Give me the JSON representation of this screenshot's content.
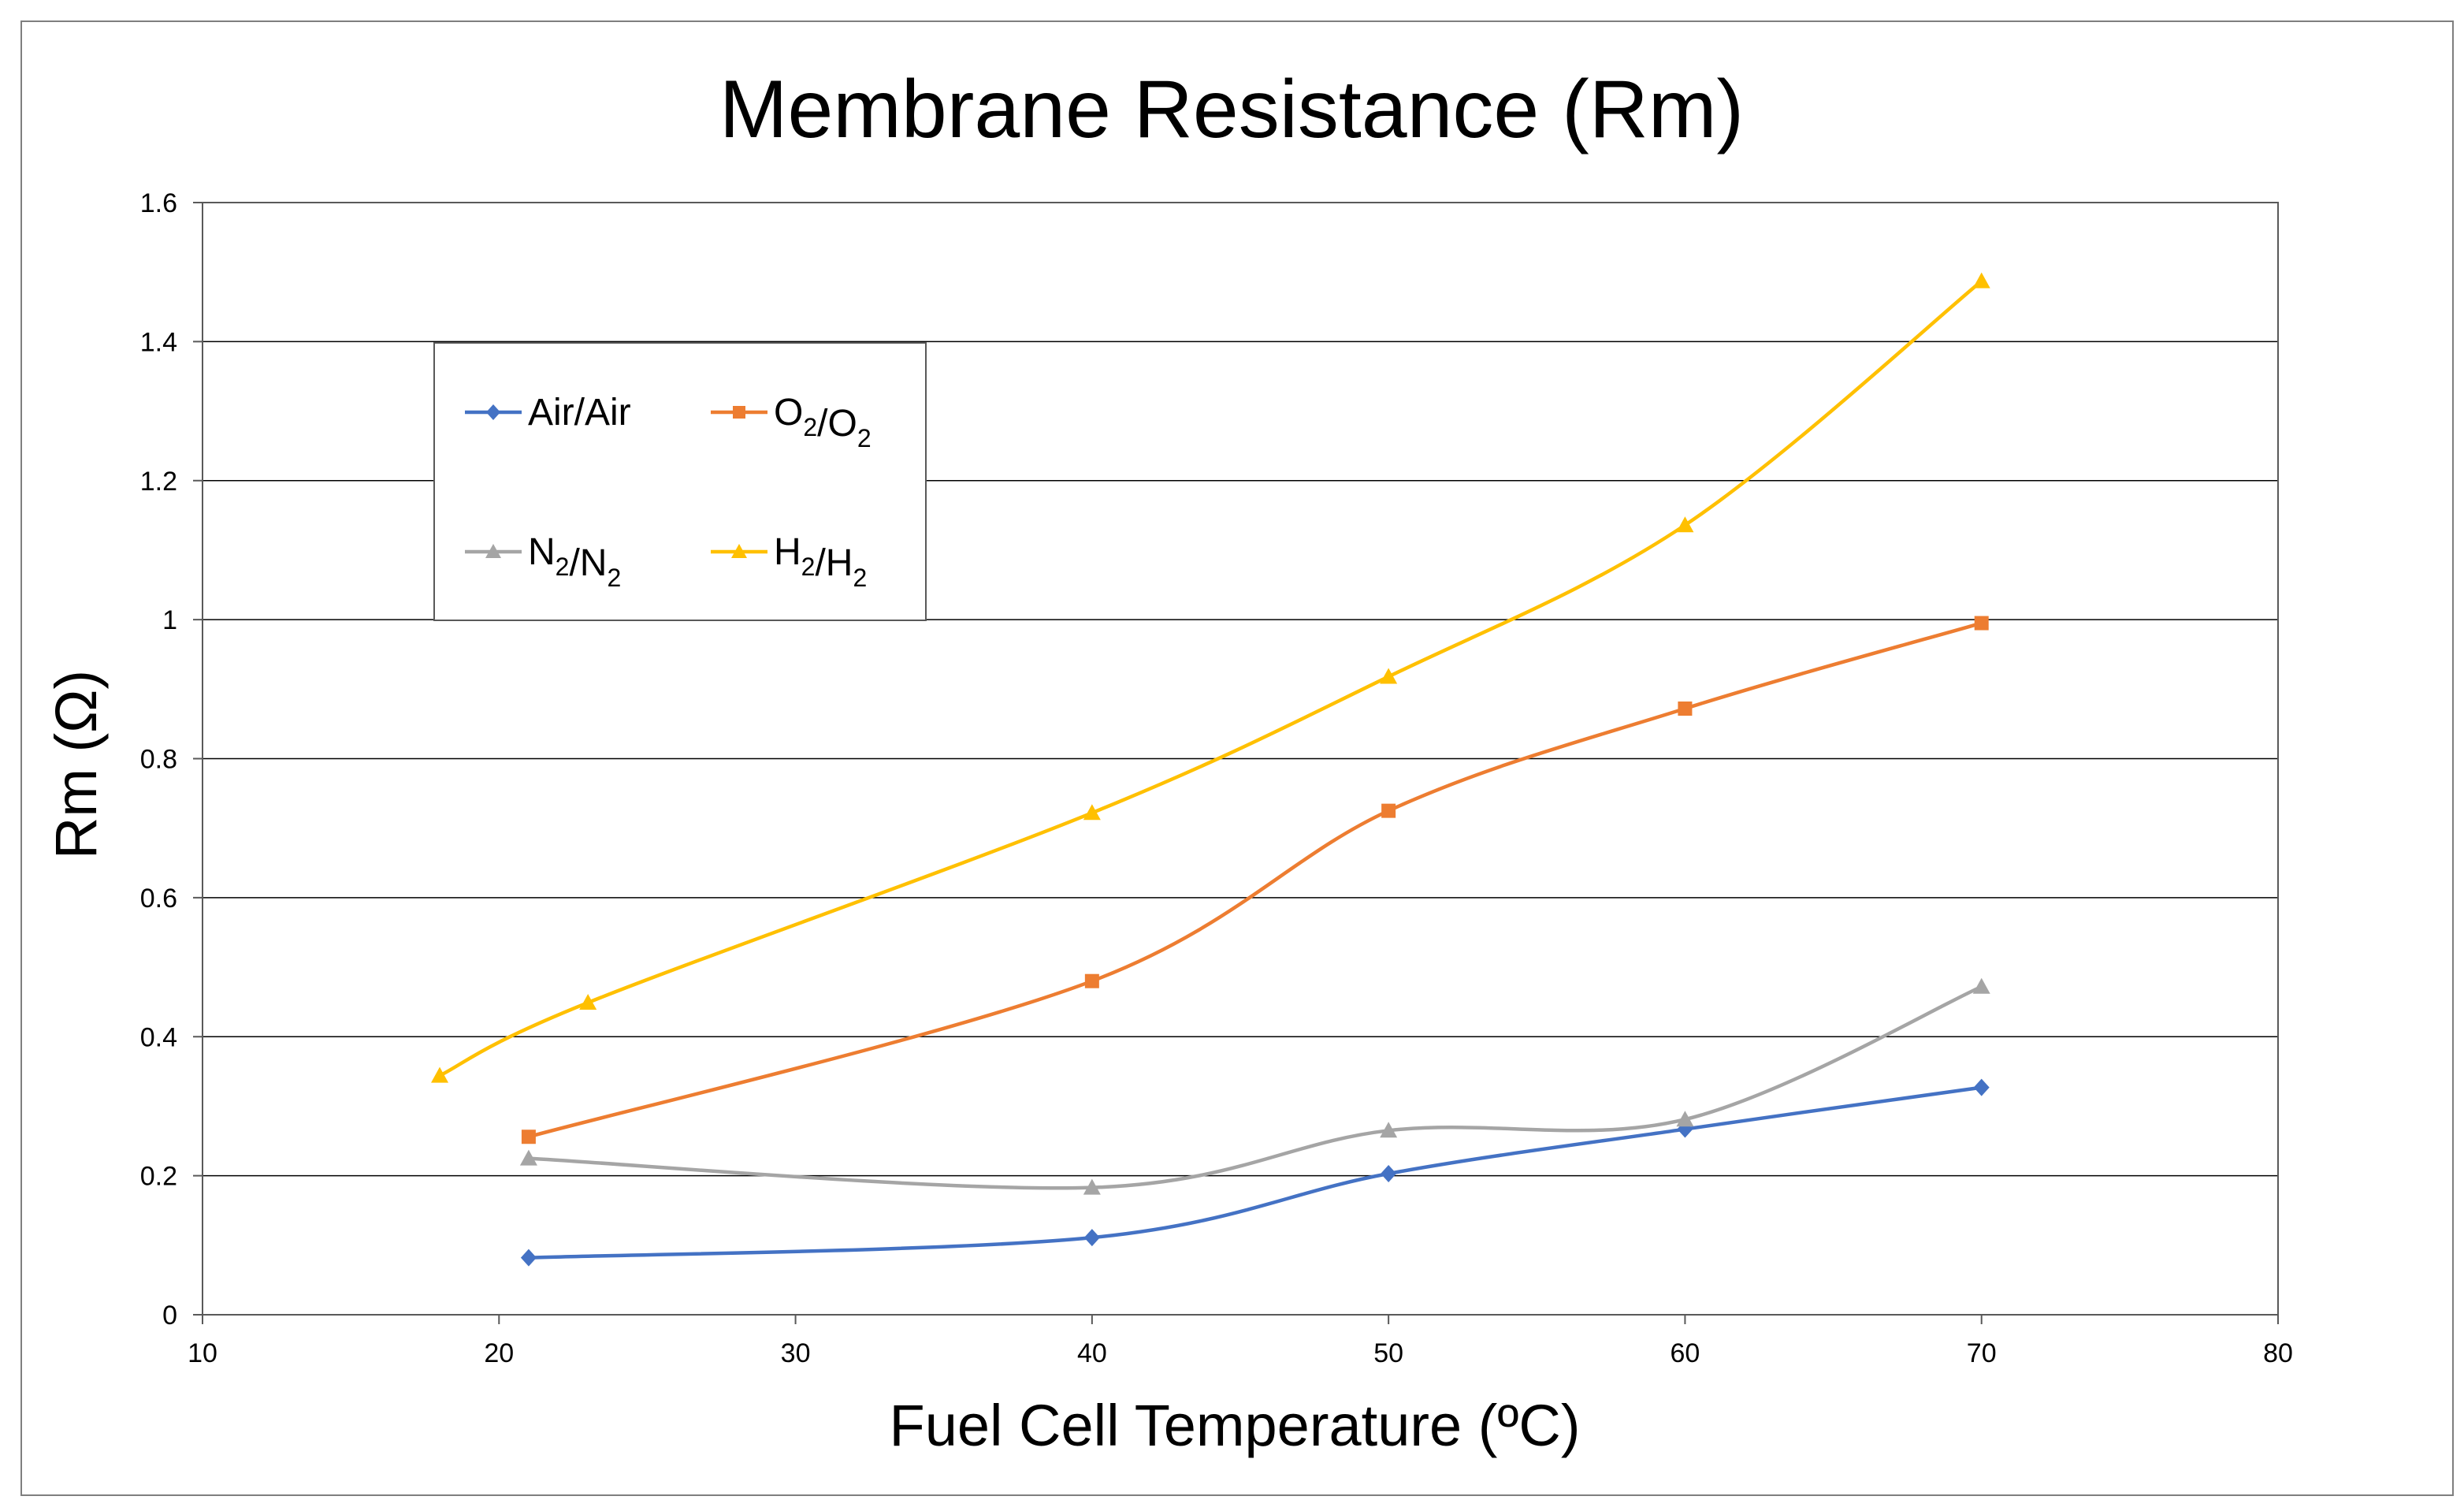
{
  "chart_data": {
    "type": "line",
    "title": "Membrane Resistance (Rm)",
    "xlabel": "Fuel Cell Temperature (ºC)",
    "ylabel": "Rm (Ω)",
    "xlim": [
      10,
      80
    ],
    "ylim": [
      0,
      1.6
    ],
    "xticks": [
      10,
      20,
      30,
      40,
      50,
      60,
      70,
      80
    ],
    "yticks": [
      0,
      0.2,
      0.4,
      0.6,
      0.8,
      1,
      1.2,
      1.4,
      1.6
    ],
    "ytick_labels": [
      "0",
      "0.2",
      "0.4",
      "0.6",
      "0.8",
      "1",
      "1.2",
      "1.4",
      "1.6"
    ],
    "grid": "horizontal",
    "legend_position": "top-left (inside plot)",
    "smooth": true,
    "series": [
      {
        "name": "Air/Air",
        "name_base": [
          "Air/Air"
        ],
        "name_sub": [],
        "color": "#4472C4",
        "marker": "diamond",
        "x": [
          21,
          40,
          50,
          60,
          70
        ],
        "y": [
          0.082,
          0.111,
          0.203,
          0.267,
          0.327
        ]
      },
      {
        "name": "O2/O2",
        "name_base": [
          "O",
          "/O"
        ],
        "name_sub": [
          "2",
          "2"
        ],
        "color": "#ED7D31",
        "marker": "square",
        "x": [
          21,
          40,
          50,
          60,
          70
        ],
        "y": [
          0.256,
          0.48,
          0.725,
          0.872,
          0.995
        ]
      },
      {
        "name": "N2/N2",
        "name_base": [
          "N",
          "/N"
        ],
        "name_sub": [
          "2",
          "2"
        ],
        "color": "#A5A5A5",
        "marker": "triangle",
        "x": [
          21,
          40,
          50,
          60,
          70
        ],
        "y": [
          0.225,
          0.183,
          0.265,
          0.281,
          0.472
        ]
      },
      {
        "name": "H2/H2",
        "name_base": [
          "H",
          "/H"
        ],
        "name_sub": [
          "2",
          "2"
        ],
        "color": "#FFC000",
        "marker": "triangle",
        "x": [
          18,
          23,
          40,
          50,
          60,
          70
        ],
        "y": [
          0.344,
          0.449,
          0.722,
          0.918,
          1.136,
          1.487
        ]
      }
    ]
  }
}
